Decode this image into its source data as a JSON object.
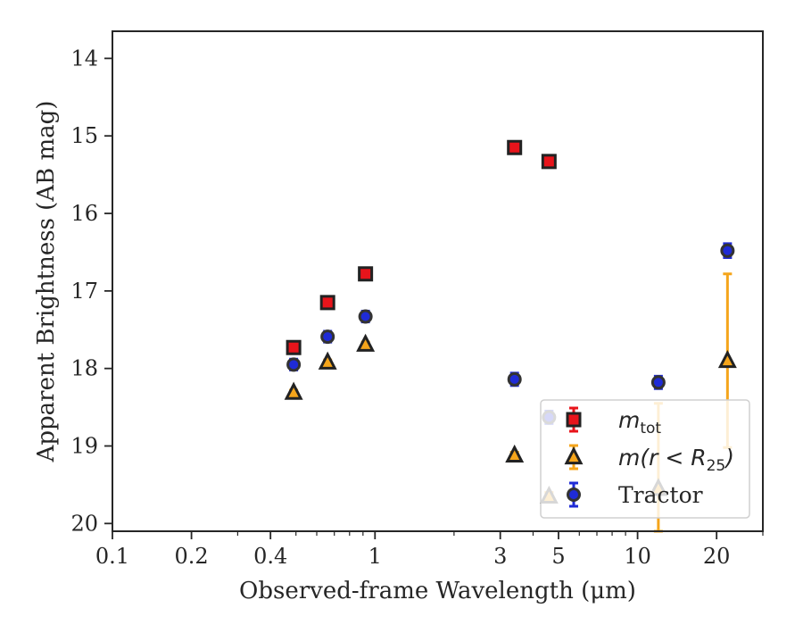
{
  "chart_data": {
    "type": "scatter",
    "title": "",
    "xlabel": "Observed-frame Wavelength (μm)",
    "ylabel": "Apparent Brightness (AB mag)",
    "xscale": "log",
    "xlim": [
      0.1,
      30
    ],
    "ylim": [
      20.1,
      13.65
    ],
    "y_inverted": true,
    "grid": false,
    "legend_placement": "lower-right",
    "xticks": [
      {
        "value": 0.1,
        "label": "0.1"
      },
      {
        "value": 0.2,
        "label": "0.2"
      },
      {
        "value": 0.4,
        "label": "0.4"
      },
      {
        "value": 1,
        "label": "1"
      },
      {
        "value": 3,
        "label": "3"
      },
      {
        "value": 5,
        "label": "5"
      },
      {
        "value": 10,
        "label": "10"
      },
      {
        "value": 20,
        "label": "20"
      }
    ],
    "yticks": [
      {
        "value": 14,
        "label": "14"
      },
      {
        "value": 15,
        "label": "15"
      },
      {
        "value": 16,
        "label": "16"
      },
      {
        "value": 17,
        "label": "17"
      },
      {
        "value": 18,
        "label": "18"
      },
      {
        "value": 19,
        "label": "19"
      },
      {
        "value": 20,
        "label": "20"
      }
    ],
    "series": [
      {
        "name": "m_tot",
        "legend_main": "m",
        "legend_sub": "tot",
        "marker": "square",
        "fill": "#e8141b",
        "edge": "#222222",
        "errcolor": "#e8141b",
        "points": [
          {
            "x": 0.49,
            "y": 17.73,
            "err": 0.05
          },
          {
            "x": 0.66,
            "y": 17.15,
            "err": 0.05
          },
          {
            "x": 0.92,
            "y": 16.78,
            "err": 0.05
          },
          {
            "x": 3.4,
            "y": 15.15,
            "err": 0.05
          },
          {
            "x": 4.6,
            "y": 15.33,
            "err": 0.05
          }
        ]
      },
      {
        "name": "m(r < R25)",
        "legend_main": "m(r < R",
        "legend_sub": "25",
        "legend_end": ")",
        "marker": "triangle",
        "fill": "#f5a51b",
        "edge": "#222222",
        "errcolor": "#f5a51b",
        "points": [
          {
            "x": 0.49,
            "y": 18.31,
            "err": 0.03
          },
          {
            "x": 0.66,
            "y": 17.92,
            "err": 0.03
          },
          {
            "x": 0.92,
            "y": 17.69,
            "err": 0.03
          },
          {
            "x": 3.4,
            "y": 19.12,
            "err": 0.04
          },
          {
            "x": 4.6,
            "y": 19.65,
            "err": 0.05
          },
          {
            "x": 12,
            "y": 19.55,
            "err": 1.1
          },
          {
            "x": 22,
            "y": 17.9,
            "err": 1.12
          }
        ]
      },
      {
        "name": "Tractor",
        "legend_main": "Tractor",
        "marker": "circle",
        "fill": "#1f2bd6",
        "edge": "#333333",
        "errcolor": "#1f2bd6",
        "points": [
          {
            "x": 0.49,
            "y": 17.95,
            "err": 0.07
          },
          {
            "x": 0.66,
            "y": 17.59,
            "err": 0.07
          },
          {
            "x": 0.92,
            "y": 17.33,
            "err": 0.07
          },
          {
            "x": 3.4,
            "y": 18.14,
            "err": 0.08
          },
          {
            "x": 4.6,
            "y": 18.63,
            "err": 0.08
          },
          {
            "x": 12,
            "y": 18.18,
            "err": 0.08
          },
          {
            "x": 22,
            "y": 16.48,
            "err": 0.09
          }
        ]
      }
    ]
  }
}
